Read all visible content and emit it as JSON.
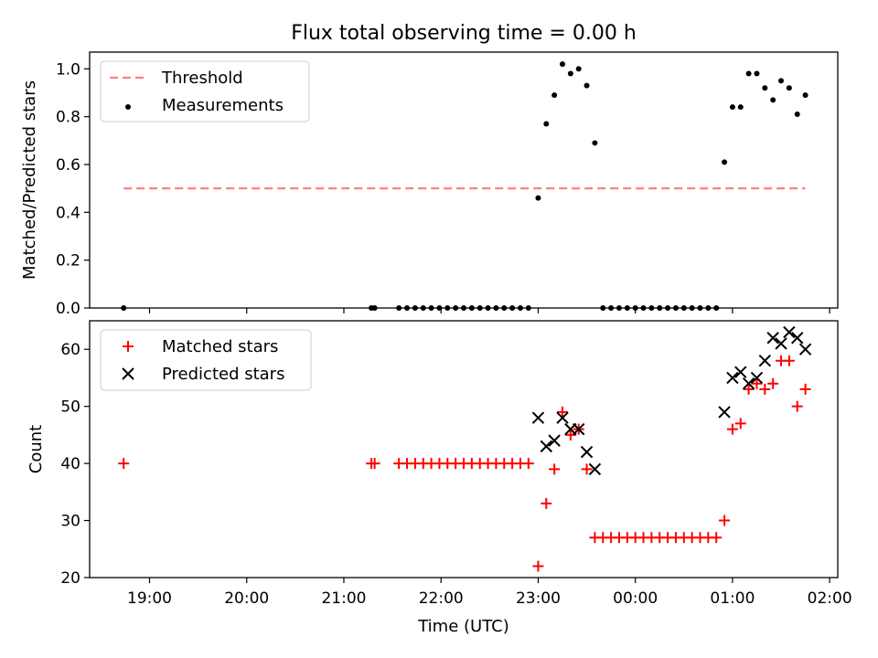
{
  "title": "Flux total observing time = 0.00 h",
  "colors": {
    "threshold": "#ff8080",
    "measurement": "#000000",
    "matched": "#ff0000",
    "predicted": "#000000",
    "frame": "#000000"
  },
  "chart_data": [
    {
      "type": "scatter",
      "ylabel": "Matched/Predicted stars",
      "ylim": [
        0,
        1.07
      ],
      "yticks": [
        "0.0",
        "0.2",
        "0.4",
        "0.6",
        "0.8",
        "1.0"
      ],
      "xlim": [
        "18:23",
        "02:05"
      ],
      "legend": "top-left",
      "series": [
        {
          "name": "Threshold",
          "kind": "line",
          "style": "dashed",
          "x": [
            "18:44",
            "01:45"
          ],
          "y": [
            0.5,
            0.5
          ]
        },
        {
          "name": "Measurements",
          "kind": "points",
          "marker": "dot",
          "x": [
            "18:44",
            "21:17",
            "21:19",
            "21:34",
            "21:39",
            "21:44",
            "21:49",
            "21:54",
            "21:59",
            "22:04",
            "22:09",
            "22:14",
            "22:19",
            "22:24",
            "22:29",
            "22:34",
            "22:39",
            "22:44",
            "22:49",
            "22:54",
            "23:00",
            "23:05",
            "23:10",
            "23:15",
            "23:20",
            "23:25",
            "23:30",
            "23:35",
            "23:40",
            "23:45",
            "23:50",
            "23:55",
            "00:00",
            "00:05",
            "00:10",
            "00:15",
            "00:20",
            "00:25",
            "00:30",
            "00:35",
            "00:40",
            "00:45",
            "00:50",
            "00:55",
            "01:00",
            "01:05",
            "01:10",
            "01:15",
            "01:20",
            "01:25",
            "01:30",
            "01:35",
            "01:40",
            "01:45"
          ],
          "y": [
            0,
            0,
            0,
            0,
            0,
            0,
            0,
            0,
            0,
            0,
            0,
            0,
            0,
            0,
            0,
            0,
            0,
            0,
            0,
            0,
            0.46,
            0.77,
            0.89,
            1.02,
            0.98,
            1.0,
            0.93,
            0.69,
            0,
            0,
            0,
            0,
            0,
            0,
            0,
            0,
            0,
            0,
            0,
            0,
            0,
            0,
            0,
            0.61,
            0.84,
            0.84,
            0.98,
            0.98,
            0.92,
            0.87,
            0.95,
            0.92,
            0.81,
            0.89
          ]
        }
      ]
    },
    {
      "type": "scatter",
      "ylabel": "Count",
      "xlabel": "Time (UTC)",
      "ylim": [
        20,
        65
      ],
      "yticks": [
        "20",
        "30",
        "40",
        "50",
        "60"
      ],
      "xlim": [
        "18:23",
        "02:05"
      ],
      "xticks": [
        "19:00",
        "20:00",
        "21:00",
        "22:00",
        "23:00",
        "00:00",
        "01:00",
        "02:00"
      ],
      "legend": "top-left",
      "series": [
        {
          "name": "Matched stars",
          "kind": "points",
          "marker": "plus",
          "x": [
            "18:44",
            "21:17",
            "21:19",
            "21:34",
            "21:39",
            "21:44",
            "21:49",
            "21:54",
            "21:59",
            "22:04",
            "22:09",
            "22:14",
            "22:19",
            "22:24",
            "22:29",
            "22:34",
            "22:39",
            "22:44",
            "22:49",
            "22:54",
            "23:00",
            "23:05",
            "23:10",
            "23:15",
            "23:20",
            "23:25",
            "23:30",
            "23:35",
            "23:40",
            "23:45",
            "23:50",
            "23:55",
            "00:00",
            "00:05",
            "00:10",
            "00:15",
            "00:20",
            "00:25",
            "00:30",
            "00:35",
            "00:40",
            "00:45",
            "00:50",
            "00:55",
            "01:00",
            "01:05",
            "01:10",
            "01:15",
            "01:20",
            "01:25",
            "01:30",
            "01:35",
            "01:40",
            "01:45"
          ],
          "y": [
            40,
            40,
            40,
            40,
            40,
            40,
            40,
            40,
            40,
            40,
            40,
            40,
            40,
            40,
            40,
            40,
            40,
            40,
            40,
            40,
            22,
            33,
            39,
            49,
            45,
            46,
            39,
            27,
            27,
            27,
            27,
            27,
            27,
            27,
            27,
            27,
            27,
            27,
            27,
            27,
            27,
            27,
            27,
            30,
            46,
            47,
            53,
            54,
            53,
            54,
            58,
            58,
            50,
            53
          ]
        },
        {
          "name": "Predicted stars",
          "kind": "points",
          "marker": "cross",
          "x": [
            "23:00",
            "23:05",
            "23:10",
            "23:15",
            "23:20",
            "23:25",
            "23:30",
            "23:35",
            "00:55",
            "01:00",
            "01:05",
            "01:10",
            "01:15",
            "01:20",
            "01:25",
            "01:30",
            "01:35",
            "01:40",
            "01:45"
          ],
          "y": [
            48,
            43,
            44,
            48,
            46,
            46,
            42,
            39,
            49,
            55,
            56,
            54,
            55,
            58,
            62,
            61,
            63,
            62,
            60
          ]
        }
      ]
    }
  ]
}
